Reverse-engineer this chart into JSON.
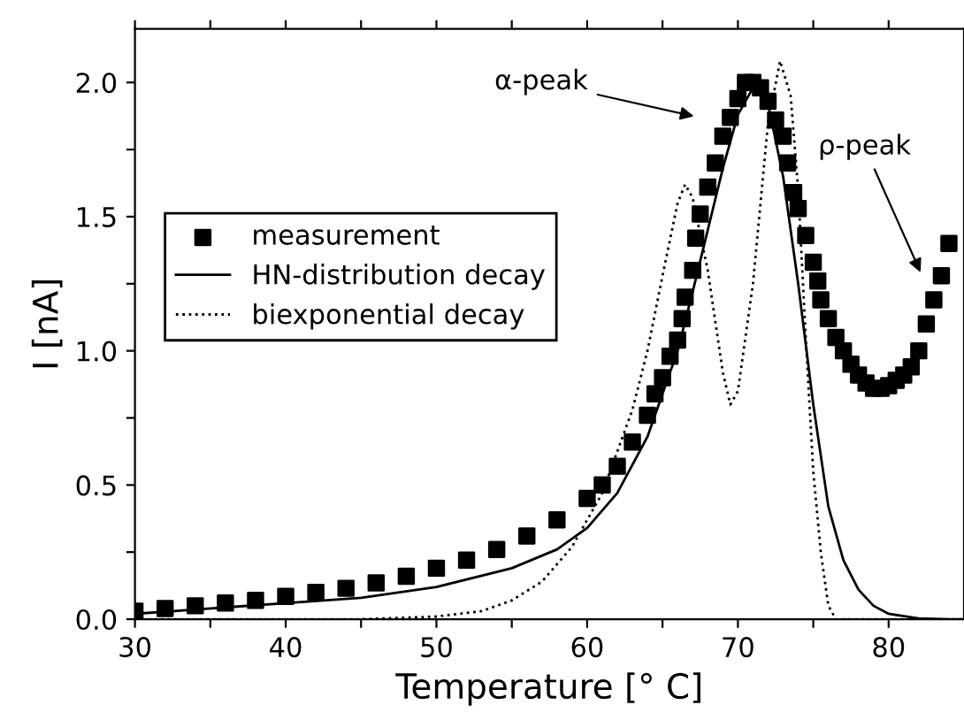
{
  "chart_data": {
    "type": "line",
    "xlabel": "Temperature [° C]",
    "ylabel": "I [nA]",
    "xlim": [
      30,
      85
    ],
    "ylim": [
      0,
      2.2
    ],
    "xticks": [
      30,
      {
        "value": 35,
        "label": null
      },
      40,
      {
        "value": 45,
        "label": null
      },
      50,
      {
        "value": 55,
        "label": null
      },
      60,
      {
        "value": 65,
        "label": null
      },
      70,
      {
        "value": 75,
        "label": null
      },
      80
    ],
    "yticks": [
      {
        "value": 0,
        "label": "0.0"
      },
      {
        "value": 0.25,
        "label": null
      },
      0.5,
      {
        "value": 0.75,
        "label": null
      },
      {
        "value": 1,
        "label": "1.0"
      },
      {
        "value": 1.25,
        "label": null
      },
      1.5,
      {
        "value": 1.75,
        "label": null
      },
      {
        "value": 2,
        "label": "2.0"
      }
    ],
    "grid": false,
    "legend": "left",
    "series": [
      {
        "name": "measurement",
        "type": "scatter",
        "marker": "square",
        "color": "#000000",
        "x": [
          30,
          32,
          34,
          36,
          38,
          40,
          42,
          44,
          46,
          48,
          50,
          52,
          54,
          56,
          58,
          60,
          61,
          62,
          63,
          64,
          64.5,
          65,
          65.5,
          66,
          66.3,
          66.5,
          67,
          67.2,
          67.5,
          68,
          68.5,
          69,
          69.5,
          70,
          70.5,
          71,
          71.5,
          72,
          72.5,
          73,
          73.3,
          73.7,
          74,
          74.5,
          75,
          75.3,
          75.5,
          76,
          76.5,
          77,
          77.5,
          78,
          78.5,
          79,
          79.5,
          80,
          80.5,
          81,
          81.5,
          82,
          82.5,
          83,
          83.5,
          84
        ],
        "values": [
          0.03,
          0.04,
          0.05,
          0.06,
          0.07,
          0.085,
          0.1,
          0.115,
          0.135,
          0.16,
          0.19,
          0.22,
          0.26,
          0.31,
          0.37,
          0.45,
          0.5,
          0.57,
          0.66,
          0.76,
          0.84,
          0.9,
          0.98,
          1.04,
          1.12,
          1.2,
          1.3,
          1.42,
          1.51,
          1.61,
          1.7,
          1.8,
          1.87,
          1.94,
          2.0,
          2.0,
          1.98,
          1.93,
          1.86,
          1.8,
          1.7,
          1.59,
          1.53,
          1.43,
          1.33,
          1.26,
          1.19,
          1.12,
          1.05,
          1.0,
          0.95,
          0.91,
          0.88,
          0.86,
          0.86,
          0.87,
          0.89,
          0.91,
          0.94,
          1.0,
          1.1,
          1.19,
          1.28,
          1.4
        ]
      },
      {
        "name": "HN-distribution decay",
        "line_style": "solid",
        "color": "#000000",
        "x": [
          30,
          40,
          45,
          50,
          55,
          58,
          60,
          62,
          64,
          66,
          67,
          68,
          69,
          70,
          71,
          71.5,
          72,
          73,
          74,
          75,
          76,
          77,
          78,
          79,
          80,
          82,
          84,
          85
        ],
        "values": [
          0.02,
          0.06,
          0.08,
          0.12,
          0.19,
          0.26,
          0.34,
          0.47,
          0.68,
          1.0,
          1.22,
          1.45,
          1.68,
          1.88,
          1.98,
          2.0,
          1.92,
          1.65,
          1.25,
          0.8,
          0.42,
          0.22,
          0.11,
          0.05,
          0.02,
          0.003,
          0,
          0
        ]
      },
      {
        "name": "biexponential decay",
        "line_style": "dotted",
        "color": "#000000",
        "x": [
          30,
          45,
          50,
          53,
          55,
          57,
          59,
          61,
          63,
          64,
          65,
          66,
          66.5,
          67,
          68,
          69,
          69.5,
          70,
          71,
          72,
          72.8,
          73.5,
          74,
          74.5,
          75,
          75.5,
          76,
          76.5,
          85
        ],
        "values": [
          0,
          0,
          0.01,
          0.03,
          0.07,
          0.14,
          0.27,
          0.47,
          0.78,
          1.0,
          1.28,
          1.55,
          1.62,
          1.57,
          1.3,
          0.92,
          0.8,
          0.85,
          1.25,
          1.85,
          2.08,
          1.95,
          1.6,
          1.05,
          0.55,
          0.25,
          0.05,
          0,
          0
        ]
      }
    ],
    "annotations": [
      "α-peak",
      "ρ-peak"
    ]
  }
}
